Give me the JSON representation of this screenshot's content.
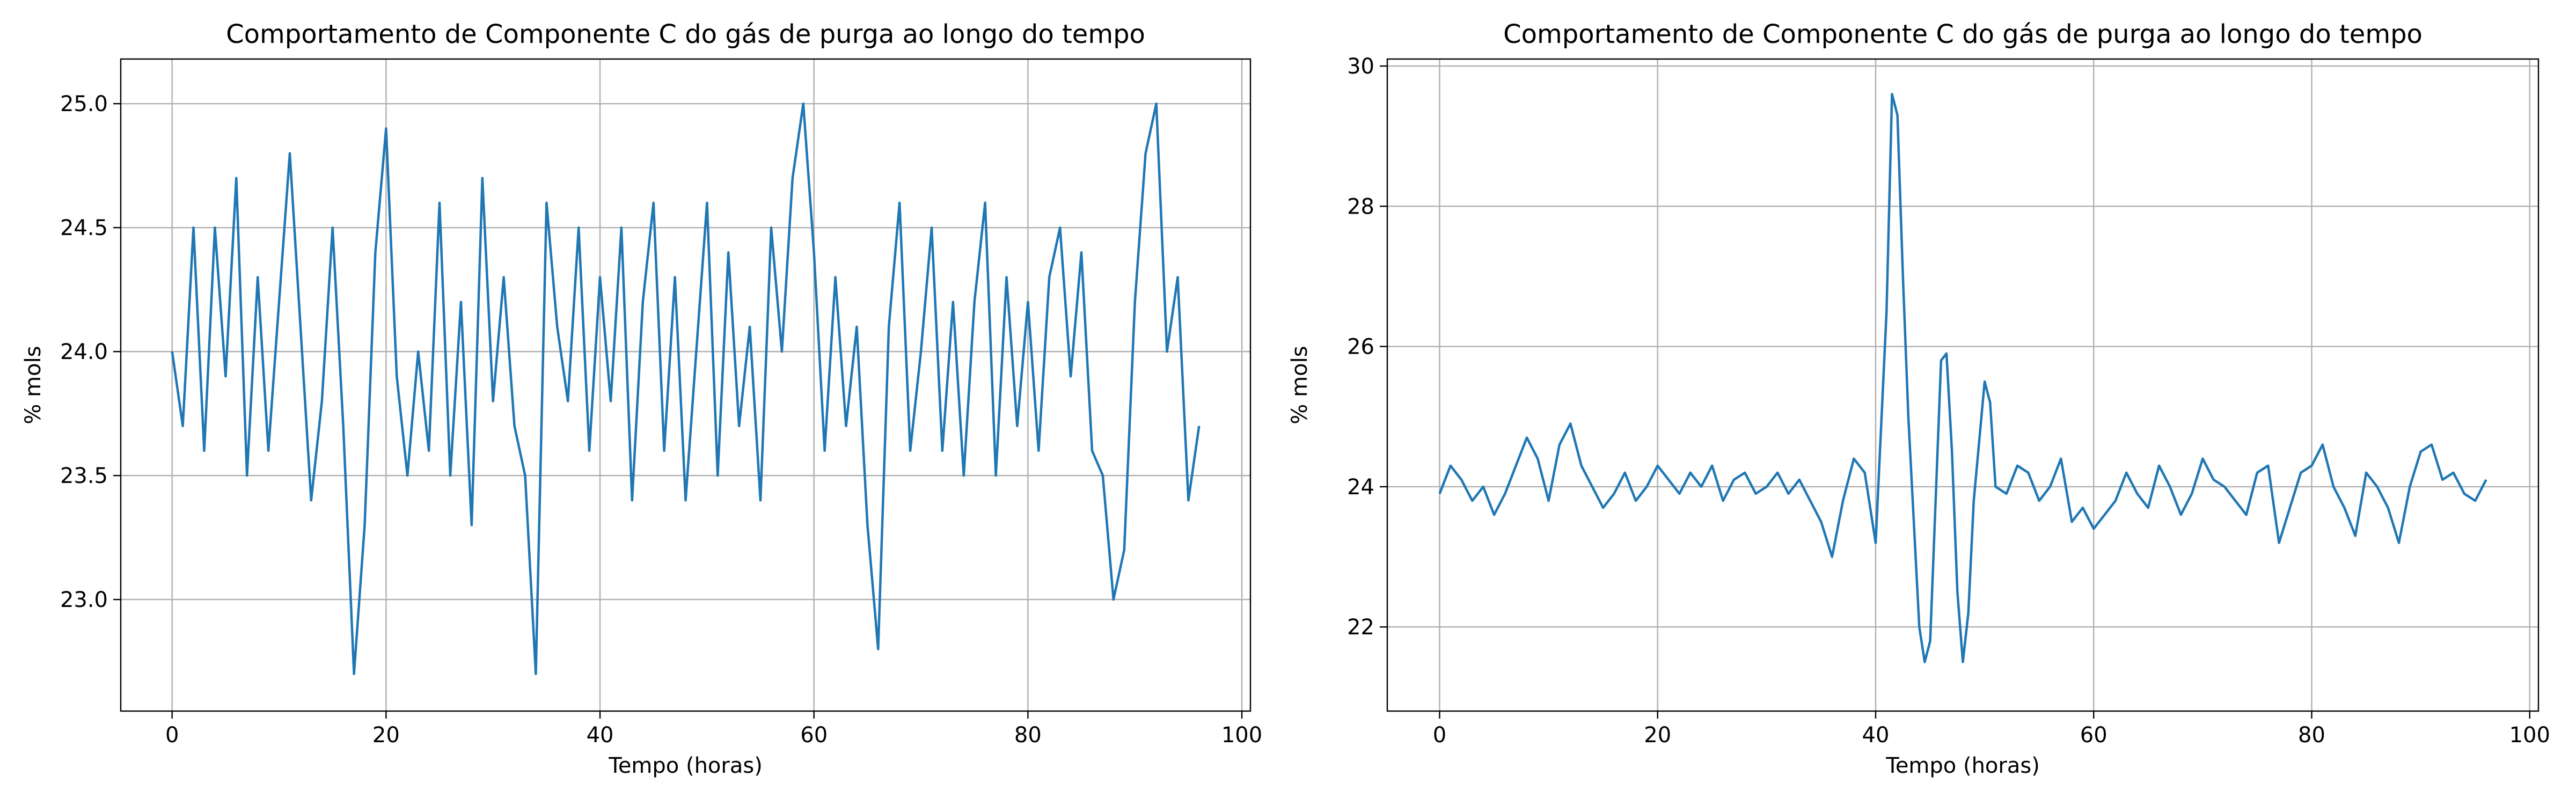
{
  "chart_data": [
    {
      "type": "line",
      "title": "Comportamento de Componente C do gás de purga ao longo do tempo",
      "xlabel": "Tempo (horas)",
      "ylabel": "% mols",
      "xlim": [
        -4.8,
        100.8
      ],
      "ylim": [
        22.55,
        25.18
      ],
      "xticks": [
        0,
        20,
        40,
        60,
        80,
        100
      ],
      "xtick_labels": [
        "0",
        "20",
        "40",
        "60",
        "80",
        "100"
      ],
      "yticks": [
        23.0,
        23.5,
        24.0,
        24.5,
        25.0
      ],
      "ytick_labels": [
        "23.0",
        "23.5",
        "24.0",
        "24.5",
        "25.0"
      ],
      "grid": true,
      "color": "#1f77b4",
      "series": [
        {
          "x": [
            0,
            1,
            2,
            3,
            4,
            5,
            6,
            7,
            8,
            9,
            10,
            11,
            12,
            13,
            14,
            15,
            16,
            17,
            18,
            19,
            20,
            21,
            22,
            23,
            24,
            25,
            26,
            27,
            28,
            29,
            30,
            31,
            32,
            33,
            34,
            35,
            36,
            37,
            38,
            39,
            40,
            41,
            42,
            43,
            44,
            45,
            46,
            47,
            48,
            49,
            50,
            51,
            52,
            53,
            54,
            55,
            56,
            57,
            58,
            59,
            60,
            61,
            62,
            63,
            64,
            65,
            66,
            67,
            68,
            69,
            70,
            71,
            72,
            73,
            74,
            75,
            76,
            77,
            78,
            79,
            80,
            81,
            82,
            83,
            84,
            85,
            86,
            87,
            88,
            89,
            90,
            91,
            92,
            93,
            94,
            95,
            96
          ],
          "values": [
            24.0,
            23.7,
            24.5,
            23.6,
            24.5,
            23.9,
            24.7,
            23.5,
            24.3,
            23.6,
            24.2,
            24.8,
            24.1,
            23.4,
            23.8,
            24.5,
            23.7,
            22.7,
            23.3,
            24.4,
            24.9,
            23.9,
            23.5,
            24.0,
            23.6,
            24.6,
            23.5,
            24.2,
            23.3,
            24.7,
            23.8,
            24.3,
            23.7,
            23.5,
            22.7,
            24.6,
            24.1,
            23.8,
            24.5,
            23.6,
            24.3,
            23.8,
            24.5,
            23.4,
            24.2,
            24.6,
            23.6,
            24.3,
            23.4,
            24.0,
            24.6,
            23.5,
            24.4,
            23.7,
            24.1,
            23.4,
            24.5,
            24.0,
            24.7,
            25.0,
            24.4,
            23.6,
            24.3,
            23.7,
            24.1,
            23.3,
            22.8,
            24.1,
            24.6,
            23.6,
            24.0,
            24.5,
            23.6,
            24.2,
            23.5,
            24.2,
            24.6,
            23.5,
            24.3,
            23.7,
            24.2,
            23.6,
            24.3,
            24.5,
            23.9,
            24.4,
            23.6,
            23.5,
            23.0,
            23.2,
            24.2,
            24.8,
            25.0,
            24.0,
            24.3,
            23.4,
            23.7
          ]
        }
      ]
    },
    {
      "type": "line",
      "title": "Comportamento de Componente C do gás de purga ao longo do tempo",
      "xlabel": "Tempo (horas)",
      "ylabel": "% mols",
      "xlim": [
        -4.8,
        100.8
      ],
      "ylim": [
        20.8,
        30.1
      ],
      "xticks": [
        0,
        20,
        40,
        60,
        80,
        100
      ],
      "xtick_labels": [
        "0",
        "20",
        "40",
        "60",
        "80",
        "100"
      ],
      "yticks": [
        22,
        24,
        26,
        28,
        30
      ],
      "ytick_labels": [
        "22",
        "24",
        "26",
        "28",
        "30"
      ],
      "grid": true,
      "color": "#1f77b4",
      "series": [
        {
          "x": [
            0,
            1,
            2,
            3,
            4,
            5,
            6,
            7,
            8,
            9,
            10,
            11,
            12,
            13,
            14,
            15,
            16,
            17,
            18,
            19,
            20,
            21,
            22,
            23,
            24,
            25,
            26,
            27,
            28,
            29,
            30,
            31,
            32,
            33,
            34,
            35,
            36,
            37,
            38,
            39,
            40,
            41,
            41.5,
            42,
            42.5,
            43,
            43.5,
            44,
            44.5,
            45,
            46,
            46.5,
            47,
            47.5,
            48,
            48.5,
            49,
            50,
            50.5,
            51,
            52,
            53,
            54,
            55,
            56,
            57,
            58,
            59,
            60,
            61,
            62,
            63,
            64,
            65,
            66,
            67,
            68,
            69,
            70,
            71,
            72,
            73,
            74,
            75,
            76,
            77,
            78,
            79,
            80,
            81,
            82,
            83,
            84,
            85,
            86,
            87,
            88,
            89,
            90,
            91,
            92,
            93,
            94,
            95,
            96
          ],
          "values": [
            23.9,
            24.3,
            24.1,
            23.8,
            24.0,
            23.6,
            23.9,
            24.3,
            24.7,
            24.4,
            23.8,
            24.6,
            24.9,
            24.3,
            24.0,
            23.7,
            23.9,
            24.2,
            23.8,
            24.0,
            24.3,
            24.1,
            23.9,
            24.2,
            24.0,
            24.3,
            23.8,
            24.1,
            24.2,
            23.9,
            24.0,
            24.2,
            23.9,
            24.1,
            23.8,
            23.5,
            23.0,
            23.8,
            24.4,
            24.2,
            23.2,
            26.5,
            29.6,
            29.3,
            27.0,
            25.0,
            23.5,
            22.0,
            21.5,
            21.8,
            25.8,
            25.9,
            24.5,
            22.5,
            21.5,
            22.2,
            23.8,
            25.5,
            25.2,
            24.0,
            23.9,
            24.3,
            24.2,
            23.8,
            24.0,
            24.4,
            23.5,
            23.7,
            23.4,
            23.6,
            23.8,
            24.2,
            23.9,
            23.7,
            24.3,
            24.0,
            23.6,
            23.9,
            24.4,
            24.1,
            24.0,
            23.8,
            23.6,
            24.2,
            24.3,
            23.2,
            23.7,
            24.2,
            24.3,
            24.6,
            24.0,
            23.7,
            23.3,
            24.2,
            24.0,
            23.7,
            23.2,
            24.0,
            24.5,
            24.6,
            24.1,
            24.2,
            23.9,
            23.8,
            24.1
          ]
        }
      ]
    }
  ]
}
